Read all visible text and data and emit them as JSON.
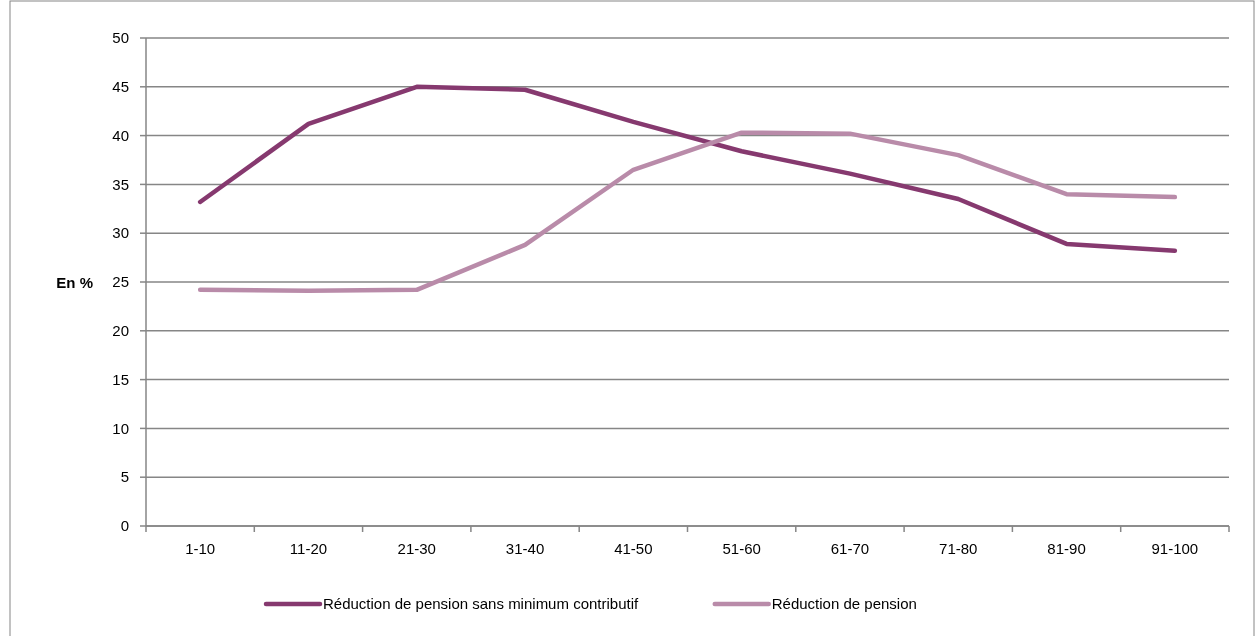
{
  "chart_data": {
    "type": "line",
    "categories": [
      "1-10",
      "11-20",
      "21-30",
      "31-40",
      "41-50",
      "51-60",
      "61-70",
      "71-80",
      "81-90",
      "91-100"
    ],
    "series": [
      {
        "name": "Réduction de pension sans minimum contributif",
        "color": "#86396f",
        "values": [
          33.2,
          41.2,
          45.0,
          44.7,
          41.4,
          38.4,
          36.1,
          33.5,
          28.9,
          28.2
        ]
      },
      {
        "name": "Réduction de pension",
        "color": "#b98ba9",
        "values": [
          24.2,
          24.1,
          24.2,
          28.8,
          36.5,
          40.3,
          40.2,
          38.0,
          34.0,
          33.7
        ]
      }
    ],
    "ylabel": "En %",
    "ylim": [
      0,
      50
    ],
    "yticks": [
      0,
      5,
      10,
      15,
      20,
      25,
      30,
      35,
      40,
      45,
      50
    ],
    "grid": "y",
    "legend": "bottom",
    "marker": "none",
    "line_style": "solid"
  }
}
